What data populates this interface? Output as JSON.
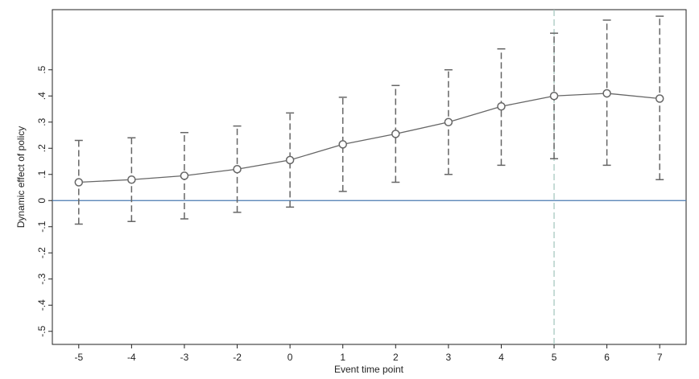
{
  "chart_data": {
    "type": "errorbar",
    "x_label": "Event time point",
    "y_label": "Dynamic effect of policy",
    "categories": [
      "-5",
      "-4",
      "-3",
      "-2",
      "0",
      "1",
      "2",
      "3",
      "4",
      "5",
      "6",
      "7"
    ],
    "values": [
      0.07,
      0.08,
      0.095,
      0.12,
      0.155,
      0.215,
      0.255,
      0.3,
      0.36,
      0.4,
      0.41,
      0.39
    ],
    "ci_lower": [
      -0.09,
      -0.08,
      -0.07,
      -0.045,
      -0.025,
      0.035,
      0.07,
      0.1,
      0.135,
      0.16,
      0.135,
      0.08
    ],
    "ci_upper": [
      0.23,
      0.24,
      0.26,
      0.285,
      0.335,
      0.395,
      0.44,
      0.5,
      0.58,
      0.64,
      0.69,
      0.705
    ],
    "color": "#666666",
    "hline": 0,
    "hline_color": "#4a7ab0",
    "vline": "5",
    "vline_color": "#a8c8c0",
    "ylim": [
      -0.55,
      0.73
    ],
    "yticks": [
      {
        "value": -0.5,
        "label": "-.5"
      },
      {
        "value": -0.4,
        "label": "-.4"
      },
      {
        "value": -0.3,
        "label": "-.3"
      },
      {
        "value": -0.2,
        "label": "-.2"
      },
      {
        "value": -0.1,
        "label": "-.1"
      },
      0,
      {
        "value": 0.1,
        "label": ".1"
      },
      {
        "value": 0.2,
        "label": ".2"
      },
      {
        "value": 0.3,
        "label": ".3"
      },
      {
        "value": 0.4,
        "label": ".4"
      },
      {
        "value": 0.5,
        "label": ".5"
      }
    ]
  }
}
